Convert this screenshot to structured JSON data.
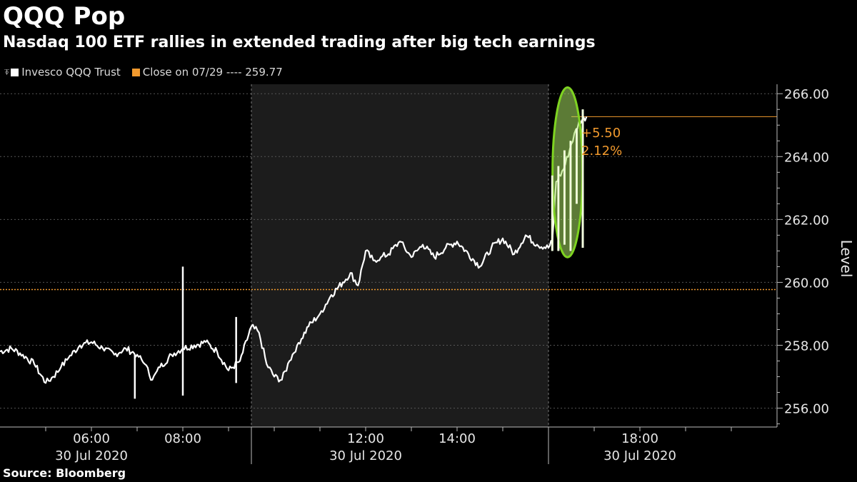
{
  "title": "QQQ Pop",
  "subtitle": "Nasdaq 100 ETF rallies in extended trading after big tech earnings",
  "source": "Source: Bloomberg",
  "colors": {
    "background": "#000000",
    "price_line": "#ffffff",
    "close_line": "#f29a2e",
    "session_shade": "#1c1c1c",
    "highlight_ellipse": "#7ed321",
    "highlight_fill": "#a8e063"
  },
  "legend": [
    {
      "label": "Invesco QQQ Trust",
      "color": "#ffffff",
      "icon": "candle-icon"
    },
    {
      "label": "Close on 07/29 ---- 259.77",
      "color": "#f29a2e",
      "icon": "square-icon"
    }
  ],
  "annotations": {
    "change_abs": "+5.50",
    "change_pct": "2.12%"
  },
  "chart_data": {
    "type": "line",
    "title": "QQQ Pop",
    "subtitle": "Nasdaq 100 ETF rallies in extended trading after big tech earnings",
    "xlabel": "",
    "ylabel": "Level",
    "ylim": [
      255.4,
      266.3
    ],
    "xlim": [
      "04:00",
      "21:00"
    ],
    "y_ticks": [
      256,
      258,
      260,
      262,
      264,
      266
    ],
    "y_tick_labels": [
      "256.00",
      "258.00",
      "260.00",
      "262.00",
      "264.00",
      "266.00"
    ],
    "x_ticks": [
      "06:00",
      "08:00",
      "12:00",
      "14:00",
      "18:00"
    ],
    "date_labels": [
      {
        "at": "06:00",
        "label": "30 Jul 2020"
      },
      {
        "at": "12:00",
        "label": "30 Jul 2020"
      },
      {
        "at": "18:00",
        "label": "30 Jul 2020"
      }
    ],
    "regular_session": [
      "09:30",
      "16:00"
    ],
    "axis_side": "right",
    "grid": "horizontal dotted",
    "legend_position": "top-left",
    "series": [
      {
        "name": "Invesco QQQ Trust",
        "x": [
          "04:00",
          "04:15",
          "04:30",
          "04:45",
          "05:00",
          "05:10",
          "05:20",
          "05:30",
          "05:45",
          "06:00",
          "06:15",
          "06:30",
          "06:45",
          "07:00",
          "07:10",
          "07:20",
          "07:30",
          "07:45",
          "08:00",
          "08:15",
          "08:30",
          "08:45",
          "09:00",
          "09:15",
          "09:30",
          "09:40",
          "09:50",
          "10:00",
          "10:10",
          "10:20",
          "10:30",
          "10:45",
          "11:00",
          "11:15",
          "11:30",
          "11:40",
          "11:50",
          "12:00",
          "12:10",
          "12:20",
          "12:30",
          "12:45",
          "13:00",
          "13:15",
          "13:30",
          "13:45",
          "14:00",
          "14:15",
          "14:30",
          "14:45",
          "15:00",
          "15:15",
          "15:30",
          "15:45",
          "16:00",
          "16:05",
          "16:10",
          "16:20",
          "16:30",
          "16:40",
          "16:50"
        ],
        "y": [
          257.8,
          257.9,
          257.7,
          257.4,
          256.8,
          257.0,
          257.3,
          257.6,
          258.0,
          258.1,
          257.9,
          257.7,
          257.9,
          257.7,
          257.4,
          256.9,
          257.3,
          257.7,
          257.9,
          258.0,
          258.1,
          257.8,
          257.2,
          257.5,
          258.6,
          258.4,
          257.4,
          257.0,
          256.9,
          257.5,
          258.0,
          258.6,
          259.0,
          259.6,
          260.0,
          260.3,
          259.9,
          261.0,
          260.7,
          260.8,
          260.9,
          261.3,
          260.8,
          261.2,
          260.8,
          261.1,
          261.3,
          260.9,
          260.5,
          261.1,
          261.4,
          260.9,
          261.5,
          261.2,
          261.1,
          261.3,
          263.2,
          263.6,
          264.4,
          265.1,
          265.27
        ]
      },
      {
        "name": "Close on 07/29",
        "y_constant": 259.77
      }
    ],
    "spikes": [
      {
        "x": "08:00",
        "low": 256.4,
        "high": 260.5
      },
      {
        "x": "09:10",
        "low": 256.8,
        "high": 258.9
      },
      {
        "x": "06:57",
        "low": 256.3,
        "high": 257.7
      }
    ],
    "last_value_line": 265.27,
    "highlight": {
      "x_from": "16:00",
      "x_to": "16:45",
      "shape": "ellipse"
    }
  }
}
